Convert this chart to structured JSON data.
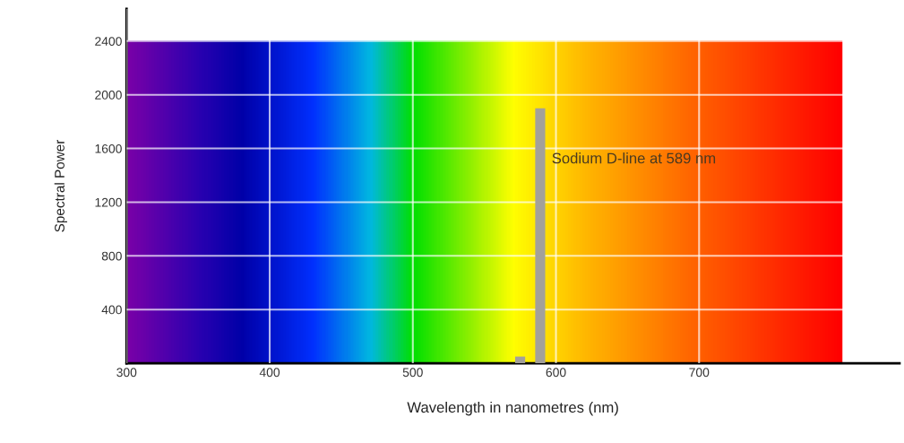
{
  "chart_data": {
    "type": "bar",
    "xlabel": "Wavelength in nanometres (nm)",
    "ylabel": "Spectral Power",
    "x": [
      575,
      589
    ],
    "values": [
      50,
      1900
    ],
    "color": "#a3a09a",
    "xlim": [
      300,
      840
    ],
    "ylim": [
      0,
      2640
    ],
    "xticks": [
      300,
      400,
      500,
      600,
      700
    ],
    "yticks": [
      400,
      800,
      1200,
      1600,
      2000,
      2400
    ],
    "grid": true,
    "annotations": [
      "Sodium D-line at 589 nm"
    ]
  }
}
